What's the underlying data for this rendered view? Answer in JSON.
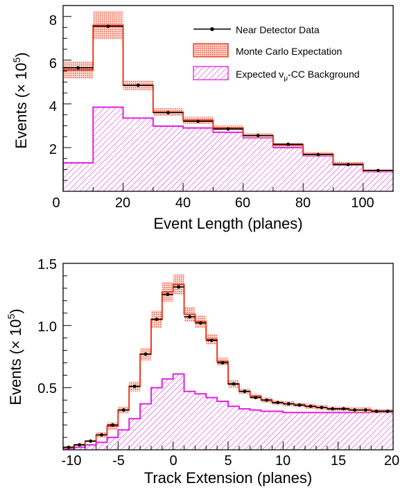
{
  "colors": {
    "data": "#000000",
    "mc": "#e8391e",
    "mc_band": "#f4a090",
    "background": "#e020e0"
  },
  "chart_data": [
    {
      "type": "histogram",
      "xlabel": "Event Length (planes)",
      "ylabel": "Events (× 10",
      "ylabel_exp": "5",
      "ylabel_close": ")",
      "xlim": [
        0,
        110
      ],
      "ylim": [
        0,
        8.5
      ],
      "xticks": [
        "0",
        "20",
        "40",
        "60",
        "80",
        "100"
      ],
      "yticks": [
        "2",
        "4",
        "6",
        "8"
      ],
      "bin_edges": [
        0,
        10,
        20,
        30,
        40,
        50,
        60,
        70,
        80,
        90,
        100,
        110
      ],
      "legend": {
        "placement": "top-right",
        "data_label": "Near Detector Data",
        "mc_label": "Monte Carlo Expectation",
        "bg_label_pre": "Expected ν",
        "bg_label_sub": "μ",
        "bg_label_post": "-CC Background"
      },
      "series": [
        {
          "name": "Near Detector Data",
          "style": "points",
          "values": [
            5.65,
            7.55,
            4.85,
            3.6,
            3.2,
            2.85,
            2.55,
            2.15,
            1.68,
            1.22,
            0.95
          ]
        },
        {
          "name": "Monte Carlo Expectation",
          "style": "step",
          "values": [
            5.55,
            7.6,
            4.85,
            3.62,
            3.25,
            2.9,
            2.55,
            2.12,
            1.7,
            1.25,
            0.95
          ],
          "band": [
            0.4,
            0.65,
            0.22,
            0.18,
            0.16,
            0.12,
            0.1,
            0.1,
            0.09,
            0.08,
            0.06
          ]
        },
        {
          "name": "Expected νμ-CC Background",
          "style": "hatched",
          "values": [
            1.3,
            3.85,
            3.35,
            2.98,
            2.9,
            2.7,
            2.45,
            2.0,
            1.62,
            1.2,
            0.9
          ]
        }
      ]
    },
    {
      "type": "histogram",
      "xlabel": "Track Extension (planes)",
      "ylabel": "Events (× 10",
      "ylabel_exp": "5",
      "ylabel_close": ")",
      "xlim": [
        -10,
        20
      ],
      "ylim": [
        0,
        1.5
      ],
      "xticks": [
        "-10",
        "-5",
        "0",
        "5",
        "10",
        "15",
        "20"
      ],
      "yticks": [
        "0.5",
        "1.0",
        "1.5"
      ],
      "bin_edges": [
        -10,
        -9,
        -8,
        -7,
        -6,
        -5,
        -4,
        -3,
        -2,
        -1,
        0,
        1,
        2,
        3,
        4,
        5,
        6,
        7,
        8,
        9,
        10,
        11,
        12,
        13,
        14,
        15,
        16,
        17,
        18,
        19,
        20
      ],
      "series": [
        {
          "name": "Near Detector Data",
          "style": "points",
          "values": [
            0.02,
            0.04,
            0.07,
            0.12,
            0.2,
            0.32,
            0.51,
            0.77,
            1.05,
            1.25,
            1.31,
            1.07,
            1.02,
            0.88,
            0.7,
            0.53,
            0.47,
            0.42,
            0.4,
            0.38,
            0.37,
            0.36,
            0.35,
            0.34,
            0.33,
            0.33,
            0.32,
            0.32,
            0.31,
            0.31
          ]
        },
        {
          "name": "Monte Carlo Expectation",
          "style": "step",
          "values": [
            0.02,
            0.04,
            0.07,
            0.12,
            0.19,
            0.32,
            0.51,
            0.77,
            1.05,
            1.27,
            1.33,
            1.09,
            1.03,
            0.89,
            0.71,
            0.53,
            0.47,
            0.43,
            0.4,
            0.38,
            0.37,
            0.36,
            0.35,
            0.34,
            0.33,
            0.33,
            0.32,
            0.32,
            0.31,
            0.31
          ],
          "band": [
            0.01,
            0.01,
            0.01,
            0.02,
            0.03,
            0.03,
            0.04,
            0.05,
            0.07,
            0.08,
            0.08,
            0.06,
            0.05,
            0.04,
            0.03,
            0.03,
            0.02,
            0.02,
            0.02,
            0.02,
            0.02,
            0.02,
            0.02,
            0.02,
            0.02,
            0.02,
            0.02,
            0.02,
            0.02,
            0.02
          ]
        },
        {
          "name": "Expected νμ-CC Background",
          "style": "hatched",
          "values": [
            0.01,
            0.02,
            0.04,
            0.06,
            0.1,
            0.16,
            0.25,
            0.37,
            0.5,
            0.57,
            0.61,
            0.47,
            0.45,
            0.42,
            0.39,
            0.35,
            0.33,
            0.32,
            0.31,
            0.31,
            0.3,
            0.3,
            0.3,
            0.3,
            0.3,
            0.3,
            0.3,
            0.3,
            0.3,
            0.3
          ]
        }
      ]
    }
  ]
}
